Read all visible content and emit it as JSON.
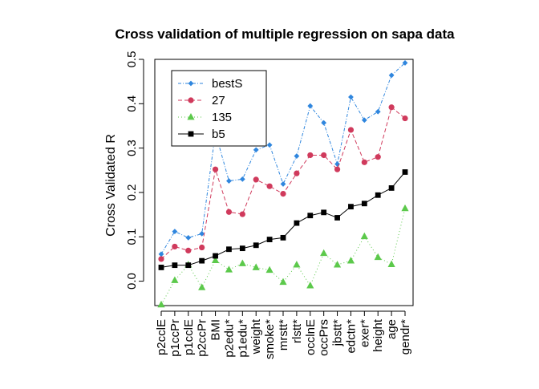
{
  "chart_data": {
    "type": "line",
    "title": "Cross validation of multiple regression on sapa data",
    "xlabel": "",
    "ylabel": "Cross Validated R",
    "ylim": [
      -0.055,
      0.5
    ],
    "yticks": [
      0.0,
      0.1,
      0.2,
      0.3,
      0.4,
      0.5
    ],
    "grid": false,
    "legend_position": "top-left",
    "categories": [
      "p2cclE",
      "p1ccPr",
      "p1cclE",
      "p2ccPr",
      "BMI",
      "p2edu*",
      "p1edu*",
      "weight",
      "smoke*",
      "mrstt*",
      "rlstt*",
      "occlnE",
      "occPrs",
      "jbstt*",
      "edctn*",
      "exer*",
      "height",
      "age",
      "gendr*"
    ],
    "series": [
      {
        "name": "bestS",
        "color": "#2f86de",
        "marker": "diamond",
        "dash": "4,2,1,2",
        "values": [
          0.061,
          0.112,
          0.098,
          0.107,
          0.335,
          0.226,
          0.23,
          0.296,
          0.307,
          0.219,
          0.282,
          0.395,
          0.357,
          0.264,
          0.415,
          0.363,
          0.382,
          0.464,
          0.492
        ]
      },
      {
        "name": "27",
        "color": "#d03a5c",
        "marker": "circle",
        "dash": "5,3",
        "values": [
          0.05,
          0.078,
          0.069,
          0.076,
          0.252,
          0.156,
          0.151,
          0.229,
          0.214,
          0.197,
          0.243,
          0.284,
          0.284,
          0.252,
          0.341,
          0.268,
          0.28,
          0.392,
          0.367
        ]
      },
      {
        "name": "135",
        "color": "#5cc94b",
        "marker": "triangle",
        "dash": "1,3",
        "values": [
          -0.053,
          0.002,
          0.037,
          -0.014,
          0.047,
          0.026,
          0.04,
          0.031,
          0.025,
          -0.002,
          0.037,
          -0.01,
          0.063,
          0.037,
          0.046,
          0.101,
          0.054,
          0.038,
          0.164
        ]
      },
      {
        "name": "b5",
        "color": "#000000",
        "marker": "square",
        "dash": "",
        "values": [
          0.031,
          0.036,
          0.036,
          0.046,
          0.057,
          0.072,
          0.074,
          0.081,
          0.094,
          0.098,
          0.131,
          0.148,
          0.155,
          0.143,
          0.168,
          0.175,
          0.194,
          0.21,
          0.246
        ]
      }
    ]
  }
}
